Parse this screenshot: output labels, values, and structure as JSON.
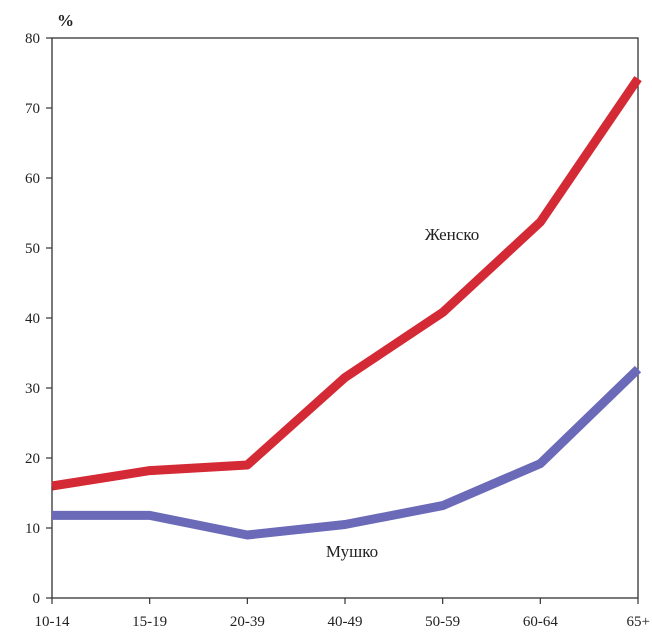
{
  "chart_data": {
    "type": "line",
    "ylabel": "%",
    "categories": [
      "10-14",
      "15-19",
      "20-39",
      "40-49",
      "50-59",
      "60-64",
      "65+"
    ],
    "ylim": [
      0,
      80
    ],
    "yticks": [
      0,
      10,
      20,
      30,
      40,
      50,
      60,
      70,
      80
    ],
    "grid": false,
    "series": [
      {
        "name": "Женско",
        "color": "#d42a35",
        "values": [
          16,
          18.2,
          19,
          31.5,
          40.8,
          53.7,
          74.2
        ]
      },
      {
        "name": "Мушко",
        "color": "#6a6ab8",
        "values": [
          11.8,
          11.8,
          9,
          10.5,
          13.2,
          19.2,
          32.7
        ]
      }
    ]
  }
}
